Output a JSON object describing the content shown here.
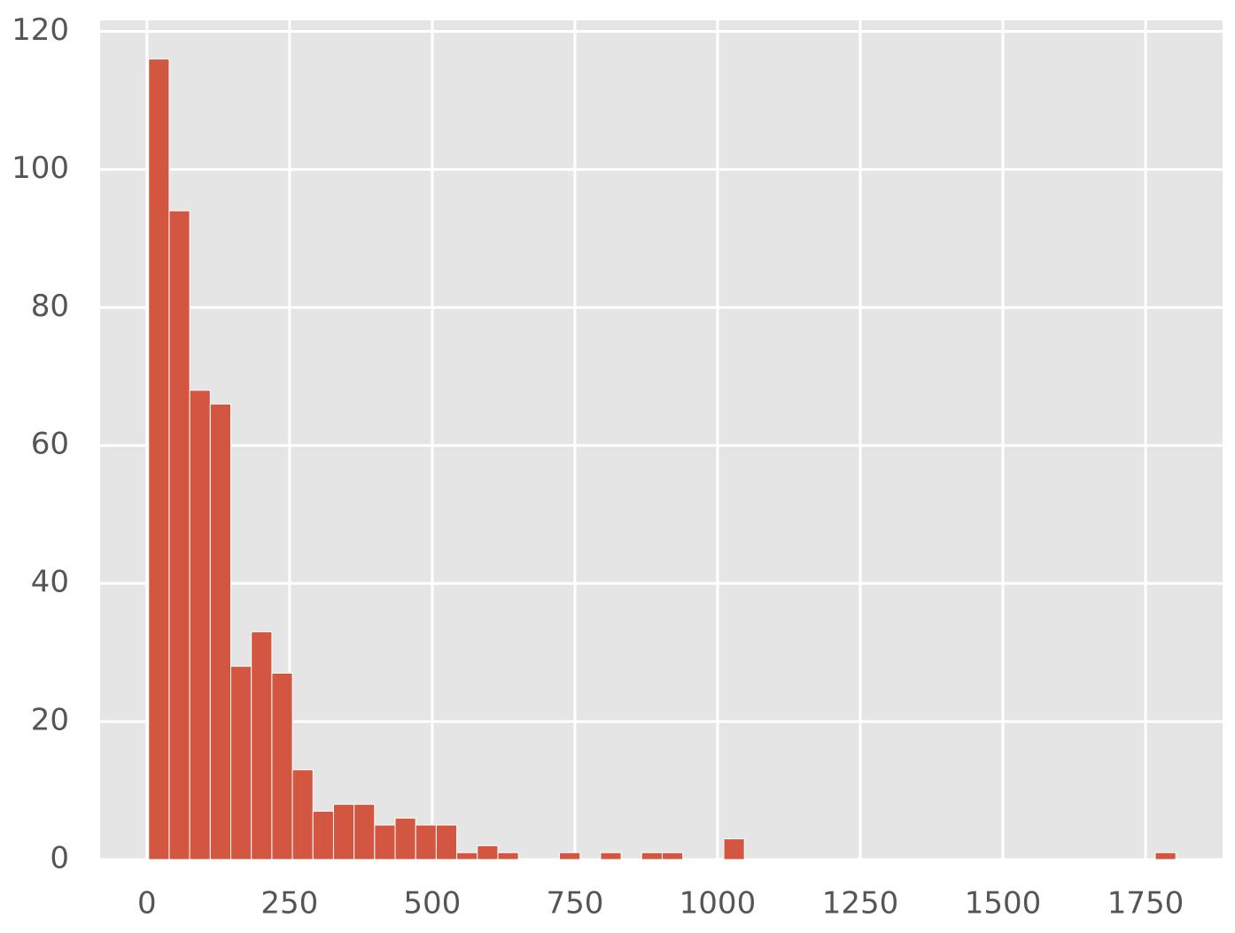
{
  "chart_data": {
    "type": "histogram",
    "bins": [
      3,
      39,
      75,
      111,
      147,
      183,
      219,
      255,
      291,
      327,
      363,
      399,
      435,
      471,
      507,
      543,
      579,
      615,
      651,
      687,
      723,
      759,
      795,
      831,
      867,
      903,
      939,
      975,
      1011,
      1047,
      1083,
      1119,
      1155,
      1191,
      1227,
      1263,
      1299,
      1335,
      1371,
      1407,
      1443,
      1479,
      1515,
      1551,
      1587,
      1623,
      1659,
      1695,
      1731,
      1767,
      1803
    ],
    "values": [
      116,
      94,
      68,
      66,
      28,
      33,
      27,
      13,
      7,
      8,
      8,
      5,
      6,
      5,
      5,
      1,
      2,
      1,
      0,
      0,
      1,
      0,
      1,
      0,
      1,
      1,
      0,
      0,
      3,
      0,
      0,
      0,
      0,
      0,
      0,
      0,
      0,
      0,
      0,
      0,
      0,
      0,
      0,
      0,
      0,
      0,
      0,
      0,
      0,
      1
    ],
    "color": "#d35640",
    "xlim": [
      -82,
      1885
    ],
    "ylim": [
      0,
      121.6
    ],
    "xticks": [
      0,
      250,
      500,
      750,
      1000,
      1250,
      1500,
      1750
    ],
    "yticks": [
      0,
      20,
      40,
      60,
      80,
      100,
      120
    ],
    "grid": true
  }
}
